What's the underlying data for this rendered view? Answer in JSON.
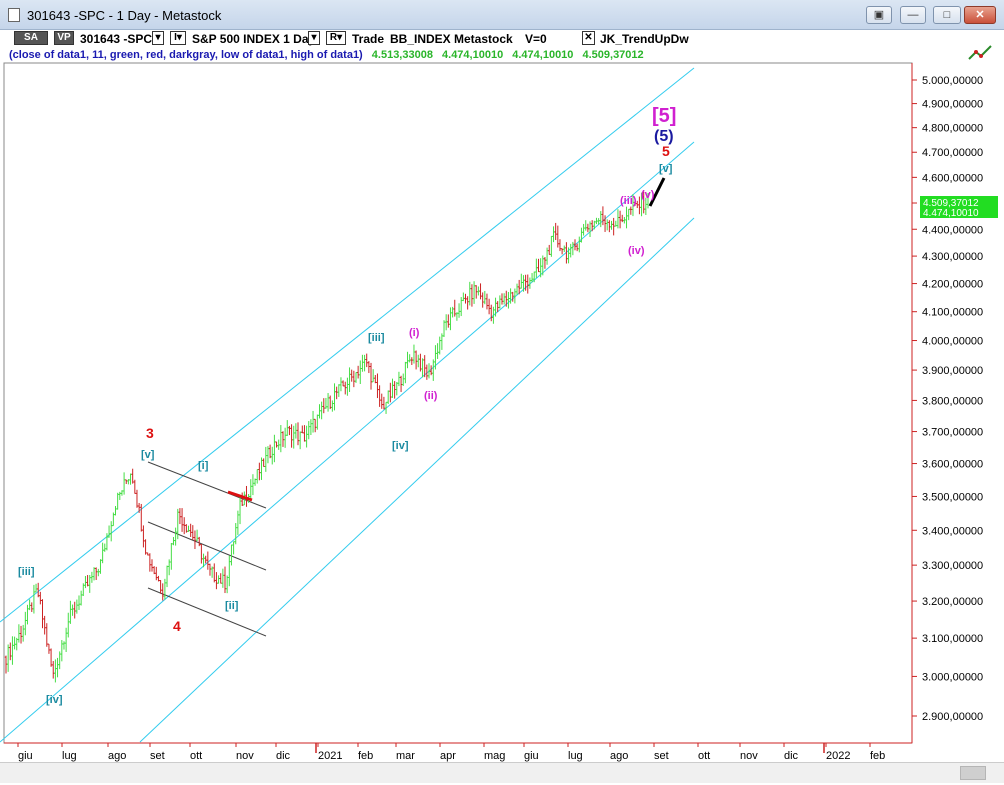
{
  "window": {
    "title": "301643 -SPC - 1 Day - Metastock",
    "buttons": {
      "restore_alt": "▣",
      "minimize": "—",
      "maximize": "□",
      "close": "✕"
    }
  },
  "toolbar": {
    "sa": "SA",
    "vp": "VP",
    "symbol": "301643 -SPC",
    "i_box": "I▾",
    "desc": "S&P 500 INDEX 1 Day",
    "r_box": "R▾",
    "trade": "Trade",
    "exchange": "BB_INDEX",
    "source": "Metastock",
    "volume": "V=0",
    "close_box": "✕",
    "indicator": "JK_TrendUpDw"
  },
  "dataline": {
    "label": "(close of data1,  11,  green,  red,  darkgray,  low of data1,  high of data1)",
    "v1": "4.513,33008",
    "v2": "4.474,10010",
    "v3": "4.474,10010",
    "v4": "4.509,37012"
  },
  "chart_data": {
    "type": "candlestick",
    "title": "301643 -SPC - 1 Day - Metastock",
    "ylim": [
      2800,
      5100
    ],
    "y_ticks": [
      "5.000,00000",
      "4.900,00000",
      "4.800,00000",
      "4.700,00000",
      "4.600,00000",
      "4.500,00000",
      "4.400,00000",
      "4.300,00000",
      "4.200,00000",
      "4.100,00000",
      "4.000,00000",
      "3.900,00000",
      "3.800,00000",
      "3.700,00000",
      "3.600,00000",
      "3.500,00000",
      "3.400,00000",
      "3.300,00000",
      "3.200,00000",
      "3.100,00000",
      "3.000,00000",
      "2.900,00000"
    ],
    "x_ticks": [
      "giu",
      "lug",
      "ago",
      "set",
      "ott",
      "nov",
      "dic",
      "2021",
      "feb",
      "mar",
      "apr",
      "mag",
      "giu",
      "lug",
      "ago",
      "set",
      "ott",
      "nov",
      "dic",
      "2022",
      "feb"
    ],
    "price_labels": {
      "upper": "4.509,37012",
      "lower": "4.474,10010"
    },
    "colors": {
      "up": "#44dd44",
      "down": "#cc2222",
      "channel": "#33ccee",
      "wave_blue": "#1a8aa0",
      "wave_magenta": "#d020d0",
      "wave_red": "#dd1111",
      "wave_navy": "#1a1aa0"
    },
    "series_ohlc_anchor_closes": [
      3050,
      3120,
      3230,
      3000,
      3150,
      3230,
      3300,
      3480,
      3580,
      3330,
      3230,
      3450,
      3380,
      3280,
      3250,
      3480,
      3560,
      3650,
      3700,
      3680,
      3750,
      3820,
      3870,
      3930,
      3780,
      3850,
      3960,
      3880,
      4050,
      4120,
      4180,
      4100,
      4150,
      4200,
      4240,
      4370,
      4300,
      4410,
      4440,
      4420,
      4480,
      4510
    ],
    "wave_labels": [
      {
        "text": "[iii]",
        "color": "wave_blue"
      },
      {
        "text": "[iv]",
        "color": "wave_blue"
      },
      {
        "text": "3",
        "color": "wave_red"
      },
      {
        "text": "[v]",
        "color": "wave_blue"
      },
      {
        "text": "[i]",
        "color": "wave_blue"
      },
      {
        "text": "[ii]",
        "color": "wave_blue"
      },
      {
        "text": "4",
        "color": "wave_red"
      },
      {
        "text": "[iii]",
        "color": "wave_blue"
      },
      {
        "text": "[iv]",
        "color": "wave_blue"
      },
      {
        "text": "(i)",
        "color": "wave_magenta"
      },
      {
        "text": "(ii)",
        "color": "wave_magenta"
      },
      {
        "text": "(iii)",
        "color": "wave_magenta"
      },
      {
        "text": "(iv)",
        "color": "wave_magenta"
      },
      {
        "text": "(v)",
        "color": "wave_magenta"
      },
      {
        "text": "[v]",
        "color": "wave_blue"
      },
      {
        "text": "5",
        "color": "wave_red"
      },
      {
        "text": "(5)",
        "color": "wave_navy"
      },
      {
        "text": "[5]",
        "color": "wave_magenta"
      }
    ]
  }
}
